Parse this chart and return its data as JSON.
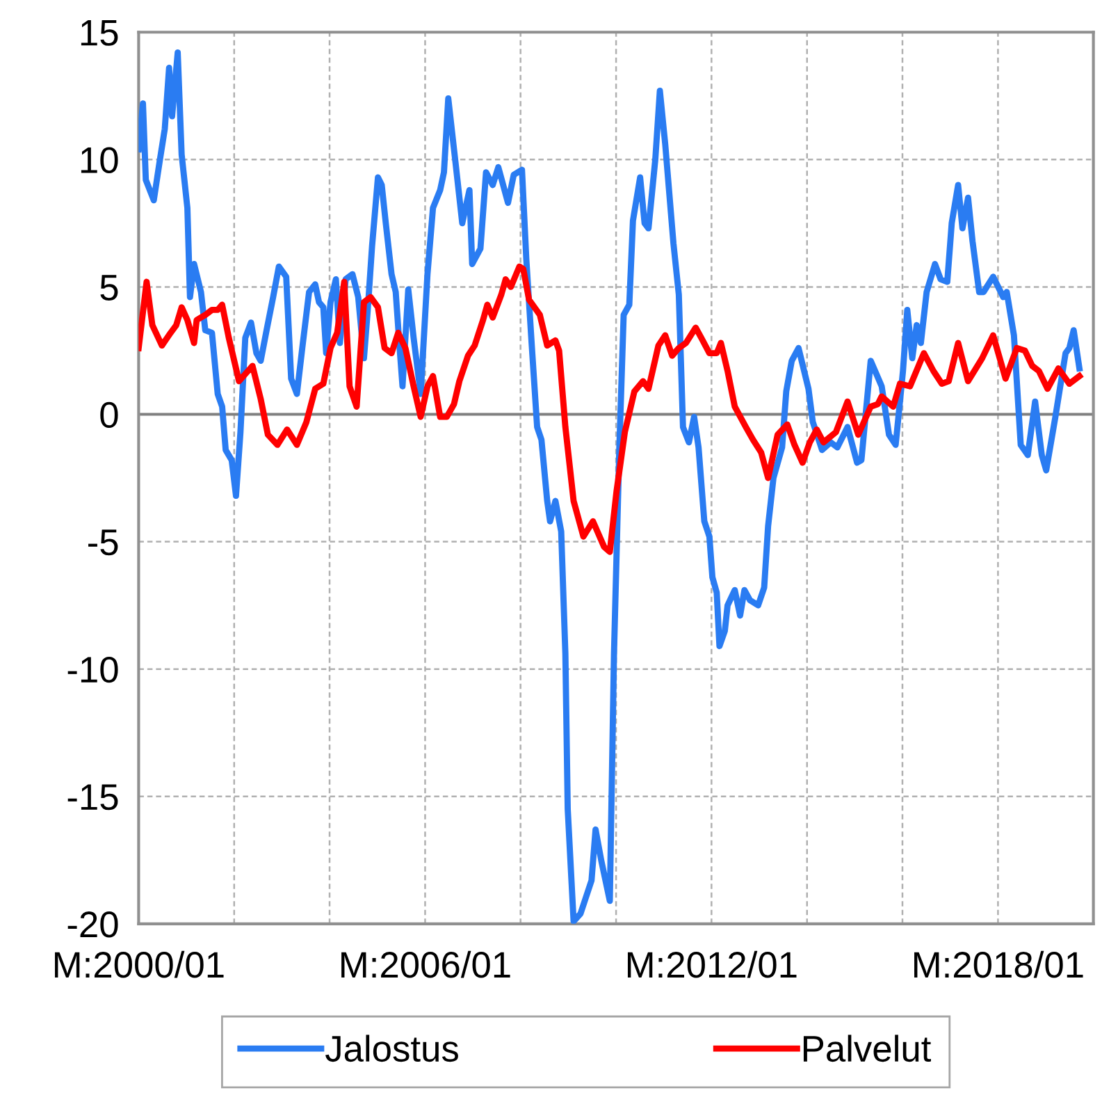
{
  "chart_data": {
    "type": "line",
    "xlim": [
      "2000-01",
      "2020-01"
    ],
    "ylim": [
      -20,
      15
    ],
    "xticks": [
      {
        "value": "2000-01",
        "label": "M:2000/01"
      },
      {
        "value": "2002-01",
        "label": null
      },
      {
        "value": "2004-01",
        "label": null
      },
      {
        "value": "2006-01",
        "label": "M:2006/01"
      },
      {
        "value": "2008-01",
        "label": null
      },
      {
        "value": "2010-01",
        "label": null
      },
      {
        "value": "2012-01",
        "label": "M:2012/01"
      },
      {
        "value": "2014-01",
        "label": null
      },
      {
        "value": "2016-01",
        "label": null
      },
      {
        "value": "2018-01",
        "label": "M:2018/01"
      },
      {
        "value": "2020-01",
        "label": null
      }
    ],
    "yticks": [
      -20,
      -15,
      -10,
      -5,
      0,
      5,
      10,
      15
    ],
    "grid": true,
    "legend": "bottom",
    "marker": "none",
    "line_style": "solid",
    "ref_lines": [
      {
        "axis": "y",
        "value": 0,
        "color": "#808080"
      }
    ],
    "series": [
      {
        "name": "Jalostus",
        "color": "#2a7cf2",
        "x": [
          "2000-01-01",
          "2000-02-03",
          "2000-02-25",
          "2000-04-26",
          "2000-06-09",
          "2000-07-19",
          "2000-08-21",
          "2000-09-13",
          "2000-10-26",
          "2000-11-25",
          "2001-01-08",
          "2001-01-28",
          "2001-02-28",
          "2001-04-22",
          "2001-05-25",
          "2001-07-15",
          "2001-08-28",
          "2001-10-01",
          "2001-10-28",
          "2001-12-13",
          "2002-01-15",
          "2002-02-18",
          "2002-03-27",
          "2002-05-10",
          "2002-06-20",
          "2002-07-23",
          "2002-09-06",
          "2002-10-26",
          "2002-12-09",
          "2003-02-03",
          "2003-03-13",
          "2003-04-26",
          "2003-06-06",
          "2003-07-28",
          "2003-09-13",
          "2003-10-12",
          "2003-11-14",
          "2003-12-06",
          "2004-01-08",
          "2004-02-18",
          "2004-03-20",
          "2004-05-03",
          "2004-06-24",
          "2004-08-07",
          "2004-09-20",
          "2004-10-19",
          "2004-11-21",
          "2005-01-05",
          "2005-02-03",
          "2005-03-06",
          "2005-04-19",
          "2005-05-21",
          "2005-06-20",
          "2005-07-12",
          "2005-08-25",
          "2005-10-05",
          "2005-11-28",
          "2006-01-19",
          "2006-03-02",
          "2006-04-26",
          "2006-05-25",
          "2006-06-27",
          "2006-08-21",
          "2006-10-12",
          "2006-12-06",
          "2006-12-27",
          "2007-02-28",
          "2007-04-12",
          "2007-06-02",
          "2007-07-15",
          "2007-09-27",
          "2007-11-10",
          "2008-01-12",
          "2008-02-14",
          "2008-03-27",
          "2008-05-07",
          "2008-06-09",
          "2008-07-23",
          "2008-08-14",
          "2008-09-24",
          "2008-11-07",
          "2008-12-09",
          "2008-12-27",
          "2009-02-10",
          "2009-04-04",
          "2009-06-27",
          "2009-07-28",
          "2009-09-09",
          "2009-11-14",
          "2009-12-16",
          "2010-01-26",
          "2010-02-28",
          "2010-04-12",
          "2010-05-10",
          "2010-07-04",
          "2010-08-07",
          "2010-09-06",
          "2010-10-28",
          "2010-12-02",
          "2011-01-12",
          "2011-03-16",
          "2011-04-26",
          "2011-05-28",
          "2011-07-12",
          "2011-08-21",
          "2011-09-24",
          "2011-11-07",
          "2011-12-16",
          "2012-01-08",
          "2012-02-10",
          "2012-03-02",
          "2012-04-12",
          "2012-05-03",
          "2012-06-27",
          "2012-08-07",
          "2012-09-09",
          "2012-10-22",
          "2012-12-23",
          "2013-02-07",
          "2013-03-09",
          "2013-04-19",
          "2013-06-24",
          "2013-07-26",
          "2013-09-06",
          "2013-10-28",
          "2014-01-12",
          "2014-02-14",
          "2014-04-26",
          "2014-07-01",
          "2014-08-21",
          "2014-11-07",
          "2015-01-19",
          "2015-02-21",
          "2015-05-03",
          "2015-07-26",
          "2015-09-20",
          "2015-11-10",
          "2016-01-05",
          "2016-02-07",
          "2016-03-16",
          "2016-04-19",
          "2016-05-21",
          "2016-07-04",
          "2016-09-06",
          "2016-10-19",
          "2016-12-09",
          "2017-01-12",
          "2017-03-02",
          "2017-04-04",
          "2017-05-17",
          "2017-06-20",
          "2017-08-10",
          "2017-09-13",
          "2017-11-25",
          "2018-02-10",
          "2018-03-09",
          "2018-05-03",
          "2018-06-24",
          "2018-08-17",
          "2018-10-12",
          "2018-12-02",
          "2019-01-05",
          "2019-03-16",
          "2019-06-02",
          "2019-07-01",
          "2019-08-03",
          "2019-09-16"
        ],
        "values": [
          10.4,
          12.2,
          9.2,
          8.4,
          9.9,
          11.2,
          13.6,
          11.7,
          14.2,
          10.2,
          8.1,
          4.6,
          5.9,
          4.8,
          3.3,
          3.2,
          0.8,
          0.3,
          -1.4,
          -1.8,
          -3.2,
          -0.7,
          3.0,
          3.6,
          2.4,
          2.1,
          3.3,
          4.6,
          5.8,
          5.4,
          1.4,
          0.8,
          2.6,
          4.8,
          5.1,
          4.4,
          4.2,
          2.4,
          4.4,
          5.3,
          2.8,
          5.3,
          5.5,
          4.6,
          2.2,
          4.1,
          6.6,
          9.3,
          9.0,
          7.5,
          5.5,
          4.8,
          2.6,
          1.1,
          4.9,
          3.0,
          0.8,
          5.5,
          8.1,
          8.8,
          9.5,
          12.4,
          9.9,
          7.5,
          8.8,
          5.9,
          6.5,
          9.5,
          9.0,
          9.7,
          8.3,
          9.4,
          9.6,
          6.1,
          2.7,
          -0.5,
          -1.0,
          -3.4,
          -4.2,
          -3.4,
          -4.6,
          -9.4,
          -15.5,
          -19.9,
          -19.6,
          -18.3,
          -16.3,
          -17.5,
          -19.1,
          -9.4,
          -1.3,
          3.9,
          4.3,
          7.6,
          9.3,
          7.5,
          7.3,
          10.0,
          12.7,
          10.6,
          6.7,
          4.7,
          -0.5,
          -1.1,
          -0.1,
          -1.3,
          -4.2,
          -4.8,
          -6.4,
          -7.0,
          -9.1,
          -8.5,
          -7.5,
          -6.9,
          -7.9,
          -6.9,
          -7.3,
          -7.5,
          -6.8,
          -4.4,
          -2.5,
          -1.3,
          0.9,
          2.1,
          2.6,
          1.0,
          -0.3,
          -1.4,
          -1.1,
          -1.3,
          -0.5,
          -1.9,
          -1.8,
          2.1,
          1.1,
          -0.8,
          -1.2,
          1.7,
          4.1,
          2.2,
          3.5,
          2.8,
          4.8,
          5.9,
          5.3,
          5.2,
          7.5,
          9.0,
          7.3,
          8.5,
          6.8,
          4.8,
          4.8,
          5.4,
          4.6,
          4.8,
          3.1,
          -1.2,
          -1.6,
          0.5,
          -1.6,
          -2.2,
          -0.1,
          2.4,
          2.6,
          3.3,
          1.8
        ]
      },
      {
        "name": "Palvelut",
        "color": "#ff0000",
        "x": [
          "2000-01-01",
          "2000-03-02",
          "2000-04-15",
          "2000-06-27",
          "2000-09-02",
          "2000-10-15",
          "2000-11-25",
          "2001-01-08",
          "2001-02-28",
          "2001-03-20",
          "2001-05-25",
          "2001-07-15",
          "2001-08-28",
          "2001-10-01",
          "2001-11-21",
          "2002-02-07",
          "2002-05-21",
          "2002-07-23",
          "2002-09-16",
          "2002-11-28",
          "2003-02-10",
          "2003-04-26",
          "2003-07-08",
          "2003-09-13",
          "2003-11-14",
          "2004-01-08",
          "2004-02-28",
          "2004-04-22",
          "2004-06-02",
          "2004-07-26",
          "2004-09-20",
          "2004-11-10",
          "2005-01-05",
          "2005-02-25",
          "2005-04-19",
          "2005-06-09",
          "2005-08-03",
          "2005-10-05",
          "2005-11-28",
          "2006-01-19",
          "2006-03-02",
          "2006-04-26",
          "2006-06-16",
          "2006-08-10",
          "2006-09-20",
          "2006-11-25",
          "2007-01-15",
          "2007-03-20",
          "2007-04-22",
          "2007-06-02",
          "2007-08-07",
          "2007-09-09",
          "2007-10-19",
          "2007-12-23",
          "2008-01-22",
          "2008-03-06",
          "2008-05-28",
          "2008-07-23",
          "2008-09-24",
          "2008-10-22",
          "2008-12-09",
          "2009-02-10",
          "2009-04-26",
          "2009-07-08",
          "2009-10-01",
          "2009-11-14",
          "2010-01-05",
          "2010-03-09",
          "2010-05-21",
          "2010-07-26",
          "2010-09-06",
          "2010-11-21",
          "2011-01-12",
          "2011-03-06",
          "2011-04-26",
          "2011-06-20",
          "2011-09-02",
          "2011-10-15",
          "2011-12-16",
          "2012-02-10",
          "2012-03-13",
          "2012-05-03",
          "2012-06-27",
          "2012-09-20",
          "2012-11-14",
          "2013-01-15",
          "2013-03-09",
          "2013-05-21",
          "2013-08-03",
          "2013-09-27",
          "2013-11-28",
          "2014-01-22",
          "2014-03-16",
          "2014-05-07",
          "2014-08-10",
          "2014-11-07",
          "2015-01-28",
          "2015-05-03",
          "2015-06-27",
          "2015-07-26",
          "2015-10-22",
          "2015-12-13",
          "2016-02-28",
          "2016-06-13",
          "2016-08-25",
          "2016-10-28",
          "2016-12-20",
          "2017-03-02",
          "2017-05-17",
          "2017-09-02",
          "2017-11-25",
          "2018-02-28",
          "2018-05-25",
          "2018-07-26",
          "2018-09-20",
          "2018-11-10",
          "2019-01-15",
          "2019-04-08",
          "2019-07-01",
          "2019-09-16"
        ],
        "values": [
          2.6,
          5.2,
          3.5,
          2.7,
          3.2,
          3.5,
          4.2,
          3.7,
          2.8,
          3.7,
          3.9,
          4.1,
          4.1,
          4.3,
          3.0,
          1.3,
          1.9,
          0.6,
          -0.8,
          -1.2,
          -0.6,
          -1.2,
          -0.3,
          1.0,
          1.2,
          2.6,
          3.2,
          5.2,
          1.1,
          0.3,
          4.4,
          4.6,
          4.2,
          2.6,
          2.4,
          3.2,
          2.6,
          1.1,
          -0.1,
          1.1,
          1.5,
          -0.1,
          -0.1,
          0.4,
          1.3,
          2.3,
          2.7,
          3.7,
          4.3,
          3.8,
          4.7,
          5.3,
          5.0,
          5.8,
          5.7,
          4.5,
          3.9,
          2.7,
          2.9,
          2.5,
          -0.5,
          -3.4,
          -4.8,
          -4.2,
          -5.2,
          -5.4,
          -3.0,
          -0.7,
          0.9,
          1.3,
          1.0,
          2.7,
          3.1,
          2.3,
          2.6,
          2.8,
          3.4,
          3.0,
          2.4,
          2.4,
          2.8,
          1.7,
          0.3,
          -0.5,
          -1.0,
          -1.5,
          -2.5,
          -0.8,
          -0.4,
          -1.2,
          -1.9,
          -1.1,
          -0.6,
          -1.1,
          -0.7,
          0.5,
          -0.8,
          0.3,
          0.4,
          0.7,
          0.3,
          1.2,
          1.1,
          2.4,
          1.7,
          1.2,
          1.3,
          2.8,
          1.3,
          2.2,
          3.1,
          1.4,
          2.6,
          2.5,
          1.9,
          1.7,
          1.0,
          1.8,
          1.2,
          1.5
        ]
      }
    ]
  }
}
